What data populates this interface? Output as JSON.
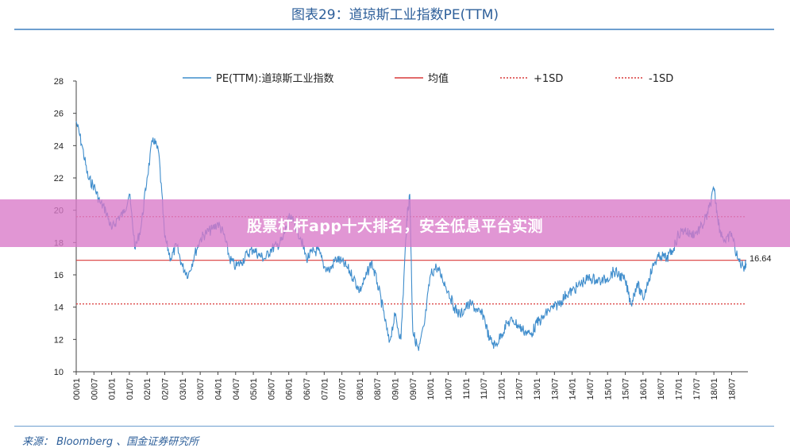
{
  "header": {
    "title": "图表29：道琼斯工业指数PE(TTM)"
  },
  "overlay": {
    "banner_text": "股票杠杆app十大排名，安全低息平台实测"
  },
  "footer": {
    "source": "来源： Bloomberg 、国金证券研究所"
  },
  "colors": {
    "pe_line": "#3f8dcc",
    "mean_line": "#d93a3a",
    "sd_lines": "#d93a3a",
    "title": "#2d5f9a",
    "banner": "#d878c8"
  },
  "chart_data": {
    "type": "line",
    "title": "图表29：道琼斯工业指数PE(TTM)",
    "ylim": [
      10,
      28
    ],
    "yticks": [
      10,
      12,
      14,
      16,
      18,
      20,
      22,
      24,
      26,
      28
    ],
    "x_range": [
      "2000-01",
      "2018-12"
    ],
    "xtick_labels": [
      "00/01",
      "00/07",
      "01/01",
      "01/07",
      "02/01",
      "02/07",
      "03/01",
      "03/07",
      "04/01",
      "04/07",
      "05/01",
      "05/07",
      "06/01",
      "06/07",
      "07/01",
      "07/07",
      "08/01",
      "08/07",
      "09/01",
      "09/07",
      "10/01",
      "10/07",
      "11/01",
      "11/07",
      "12/01",
      "12/07",
      "13/01",
      "13/07",
      "14/01",
      "14/07",
      "15/01",
      "15/07",
      "16/01",
      "16/07",
      "17/01",
      "17/07",
      "18/01",
      "18/07"
    ],
    "legend": [
      "PE(TTM):道琼斯工业指数",
      "均值",
      "+1SD",
      "-1SD"
    ],
    "legend_position": "top",
    "end_label": "16.64",
    "series": [
      {
        "name": "PE(TTM):道琼斯工业指数",
        "style": "solid",
        "points": [
          [
            "2000-01",
            25.5
          ],
          [
            "2000-03",
            24.0
          ],
          [
            "2000-05",
            22.0
          ],
          [
            "2000-07",
            21.5
          ],
          [
            "2000-09",
            20.5
          ],
          [
            "2000-11",
            20.0
          ],
          [
            "2001-01",
            18.8
          ],
          [
            "2001-03",
            19.5
          ],
          [
            "2001-05",
            19.8
          ],
          [
            "2001-07",
            21.0
          ],
          [
            "2001-09",
            17.6
          ],
          [
            "2001-11",
            19.0
          ],
          [
            "2002-01",
            22.0
          ],
          [
            "2002-03",
            24.5
          ],
          [
            "2002-05",
            23.5
          ],
          [
            "2002-07",
            18.3
          ],
          [
            "2002-09",
            17.0
          ],
          [
            "2002-11",
            17.8
          ],
          [
            "2003-01",
            16.5
          ],
          [
            "2003-03",
            16.0
          ],
          [
            "2003-05",
            17.2
          ],
          [
            "2003-07",
            18.2
          ],
          [
            "2003-09",
            18.6
          ],
          [
            "2003-11",
            18.8
          ],
          [
            "2004-01",
            19.2
          ],
          [
            "2004-03",
            18.5
          ],
          [
            "2004-05",
            17.0
          ],
          [
            "2004-07",
            16.5
          ],
          [
            "2004-09",
            16.8
          ],
          [
            "2004-11",
            17.3
          ],
          [
            "2005-01",
            17.6
          ],
          [
            "2005-03",
            17.2
          ],
          [
            "2005-05",
            17.0
          ],
          [
            "2005-07",
            17.6
          ],
          [
            "2005-09",
            17.8
          ],
          [
            "2005-11",
            18.2
          ],
          [
            "2006-01",
            19.5
          ],
          [
            "2006-03",
            19.2
          ],
          [
            "2006-05",
            18.3
          ],
          [
            "2006-07",
            17.0
          ],
          [
            "2006-09",
            17.4
          ],
          [
            "2006-11",
            17.5
          ],
          [
            "2007-01",
            16.5
          ],
          [
            "2007-03",
            16.3
          ],
          [
            "2007-05",
            17.0
          ],
          [
            "2007-07",
            16.8
          ],
          [
            "2007-09",
            16.4
          ],
          [
            "2007-11",
            15.8
          ],
          [
            "2008-01",
            15.0
          ],
          [
            "2008-03",
            15.8
          ],
          [
            "2008-05",
            16.8
          ],
          [
            "2008-07",
            15.5
          ],
          [
            "2008-09",
            13.8
          ],
          [
            "2008-11",
            11.8
          ],
          [
            "2009-01",
            13.5
          ],
          [
            "2009-03",
            12.0
          ],
          [
            "2009-05",
            19.5
          ],
          [
            "2009-06",
            21.0
          ],
          [
            "2009-07",
            12.5
          ],
          [
            "2009-09",
            11.3
          ],
          [
            "2009-11",
            13.0
          ],
          [
            "2010-01",
            16.0
          ],
          [
            "2010-03",
            16.5
          ],
          [
            "2010-05",
            15.8
          ],
          [
            "2010-07",
            15.0
          ],
          [
            "2010-09",
            14.0
          ],
          [
            "2010-11",
            13.5
          ],
          [
            "2011-01",
            14.0
          ],
          [
            "2011-03",
            14.2
          ],
          [
            "2011-05",
            13.7
          ],
          [
            "2011-07",
            13.5
          ],
          [
            "2011-09",
            12.0
          ],
          [
            "2011-11",
            11.6
          ],
          [
            "2012-01",
            12.3
          ],
          [
            "2012-03",
            13.0
          ],
          [
            "2012-05",
            13.2
          ],
          [
            "2012-07",
            12.8
          ],
          [
            "2012-09",
            12.5
          ],
          [
            "2012-11",
            12.3
          ],
          [
            "2013-01",
            13.0
          ],
          [
            "2013-03",
            13.3
          ],
          [
            "2013-05",
            13.8
          ],
          [
            "2013-07",
            14.0
          ],
          [
            "2013-09",
            14.3
          ],
          [
            "2013-11",
            14.8
          ],
          [
            "2014-01",
            15.0
          ],
          [
            "2014-03",
            15.3
          ],
          [
            "2014-05",
            15.6
          ],
          [
            "2014-07",
            15.8
          ],
          [
            "2014-09",
            15.7
          ],
          [
            "2014-11",
            15.6
          ],
          [
            "2015-01",
            15.8
          ],
          [
            "2015-03",
            16.2
          ],
          [
            "2015-05",
            16.0
          ],
          [
            "2015-07",
            15.6
          ],
          [
            "2015-09",
            14.2
          ],
          [
            "2015-11",
            15.5
          ],
          [
            "2016-01",
            14.5
          ],
          [
            "2016-03",
            15.8
          ],
          [
            "2016-05",
            16.8
          ],
          [
            "2016-07",
            17.2
          ],
          [
            "2016-09",
            17.0
          ],
          [
            "2016-11",
            17.5
          ],
          [
            "2017-01",
            18.5
          ],
          [
            "2017-03",
            18.8
          ],
          [
            "2017-05",
            18.5
          ],
          [
            "2017-07",
            18.6
          ],
          [
            "2017-09",
            19.0
          ],
          [
            "2017-11",
            19.8
          ],
          [
            "2018-01",
            21.3
          ],
          [
            "2018-02",
            20.0
          ],
          [
            "2018-03",
            18.8
          ],
          [
            "2018-05",
            18.0
          ],
          [
            "2018-07",
            18.6
          ],
          [
            "2018-09",
            17.0
          ],
          [
            "2018-11",
            16.5
          ],
          [
            "2018-12",
            16.64
          ]
        ]
      },
      {
        "name": "均值",
        "style": "solid",
        "value": 16.9
      },
      {
        "name": "+1SD",
        "style": "dotted",
        "value": 19.6
      },
      {
        "name": "-1SD",
        "style": "dotted",
        "value": 14.2
      }
    ]
  }
}
